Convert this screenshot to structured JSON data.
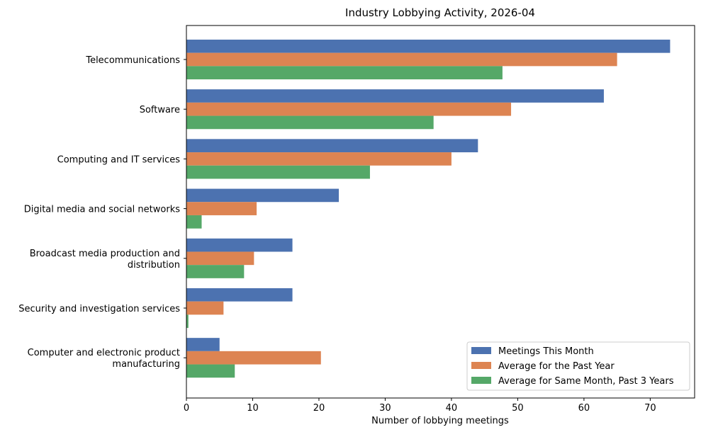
{
  "chart_data": {
    "type": "bar",
    "orientation": "horizontal",
    "title": "Industry Lobbying Activity, 2026-04",
    "xlabel": "Number of lobbying meetings",
    "ylabel": "",
    "xlim": [
      0,
      76.7
    ],
    "xticks": [
      0,
      10,
      20,
      30,
      40,
      50,
      60,
      70
    ],
    "grid": false,
    "legend_position": "lower-right",
    "categories": [
      [
        "Telecommunications"
      ],
      [
        "Software"
      ],
      [
        "Computing and IT services"
      ],
      [
        "Digital media and social networks"
      ],
      [
        "Broadcast media production and",
        "distribution"
      ],
      [
        "Security and investigation services"
      ],
      [
        "Computer and electronic product",
        "manufacturing"
      ]
    ],
    "series": [
      {
        "name": "Meetings This Month",
        "color": "#4c72b0",
        "values": [
          73,
          63,
          44,
          23,
          16,
          16,
          5
        ]
      },
      {
        "name": "Average for the Past Year",
        "color": "#dd8452",
        "values": [
          65,
          49,
          40,
          10.6,
          10.2,
          5.6,
          20.3
        ]
      },
      {
        "name": "Average for Same Month, Past 3 Years",
        "color": "#55a868",
        "values": [
          47.7,
          37.3,
          27.7,
          2.3,
          8.7,
          0.3,
          7.3
        ]
      }
    ]
  }
}
